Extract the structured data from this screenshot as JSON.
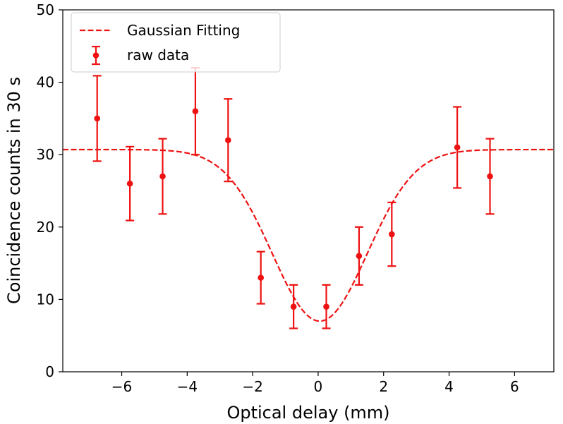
{
  "chart_data": {
    "type": "scatter",
    "title": "",
    "xlabel": "Optical delay (mm)",
    "ylabel": "Coincidence counts in 30 s",
    "xlim": [
      -7.8,
      7.2
    ],
    "ylim": [
      0,
      50
    ],
    "xticks": [
      -6,
      -4,
      -2,
      0,
      2,
      4,
      6
    ],
    "xtick_labels": [
      "−6",
      "−4",
      "−2",
      "0",
      "2",
      "4",
      "6"
    ],
    "yticks": [
      0,
      10,
      20,
      30,
      40,
      50
    ],
    "ytick_labels": [
      "0",
      "10",
      "20",
      "30",
      "40",
      "50"
    ],
    "grid": false,
    "legend_position": "top-left",
    "color": "#ee1111",
    "series": [
      {
        "name": "Gaussian Fitting",
        "kind": "dashed-line",
        "model": "gaussian-dip",
        "params": {
          "baseline": 30.7,
          "depth": 23.7,
          "center": 0.05,
          "sigma": 1.45
        }
      },
      {
        "name": "raw data",
        "kind": "errorbar",
        "points": [
          {
            "x": -6.75,
            "y": 35,
            "yerr": 5.9
          },
          {
            "x": -5.75,
            "y": 26,
            "yerr": 5.1
          },
          {
            "x": -4.75,
            "y": 27,
            "yerr": 5.2
          },
          {
            "x": -3.75,
            "y": 36,
            "yerr": 6.0
          },
          {
            "x": -2.75,
            "y": 32,
            "yerr": 5.7
          },
          {
            "x": -1.75,
            "y": 13,
            "yerr": 3.6
          },
          {
            "x": -0.75,
            "y": 9,
            "yerr": 3.0
          },
          {
            "x": 0.25,
            "y": 9,
            "yerr": 3.0
          },
          {
            "x": 1.25,
            "y": 16,
            "yerr": 4.0
          },
          {
            "x": 2.25,
            "y": 19,
            "yerr": 4.4
          },
          {
            "x": 4.25,
            "y": 31,
            "yerr": 5.6
          },
          {
            "x": 5.25,
            "y": 27,
            "yerr": 5.2
          }
        ]
      }
    ]
  }
}
